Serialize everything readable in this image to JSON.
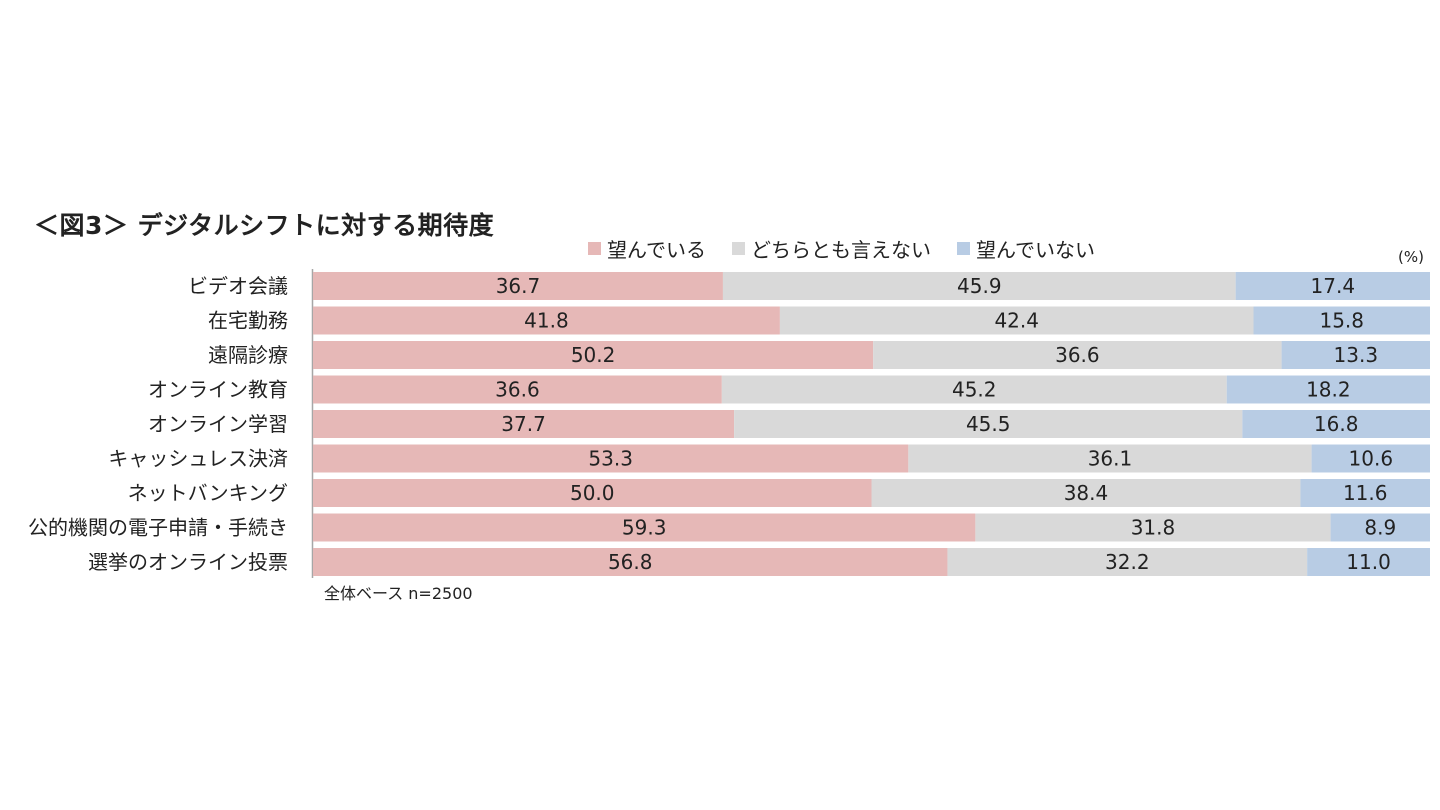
{
  "chart_data": {
    "type": "bar",
    "orientation": "horizontal",
    "stacked": true,
    "percent_stacked": true,
    "title": "＜図3＞ デジタルシフトに対する期待度",
    "unit": "(%)",
    "note": "全体ベース n=2500",
    "legend_position": "top",
    "grid": false,
    "xlim": [
      0,
      100
    ],
    "categories": [
      "ビデオ会議",
      "在宅勤務",
      "遠隔診療",
      "オンライン教育",
      "オンライン学習",
      "キャッシュレス決済",
      "ネットバンキング",
      "公的機関の電子申請・手続き",
      "選挙のオンライン投票"
    ],
    "series": [
      {
        "name": "望んでいる",
        "color": "#e6b8b7",
        "values": [
          36.7,
          41.8,
          50.2,
          36.6,
          37.7,
          53.3,
          50.0,
          59.3,
          56.8
        ],
        "labels": [
          "36.7",
          "41.8",
          "50.2",
          "36.6",
          "37.7",
          "53.3",
          "50.0",
          "59.3",
          "56.8"
        ]
      },
      {
        "name": "どちらとも言えない",
        "color": "#d9d9d9",
        "values": [
          45.9,
          42.4,
          36.6,
          45.2,
          45.5,
          36.1,
          38.4,
          31.8,
          32.2
        ],
        "labels": [
          "45.9",
          "42.4",
          "36.6",
          "45.2",
          "45.5",
          "36.1",
          "38.4",
          "31.8",
          "32.2"
        ]
      },
      {
        "name": "望んでいない",
        "color": "#b8cce4",
        "values": [
          17.4,
          15.8,
          13.3,
          18.2,
          16.8,
          10.6,
          11.6,
          8.9,
          11.0
        ],
        "labels": [
          "17.4",
          "15.8",
          "13.3",
          "18.2",
          "16.8",
          "10.6",
          "11.6",
          "8.9",
          "11.0"
        ]
      }
    ]
  }
}
